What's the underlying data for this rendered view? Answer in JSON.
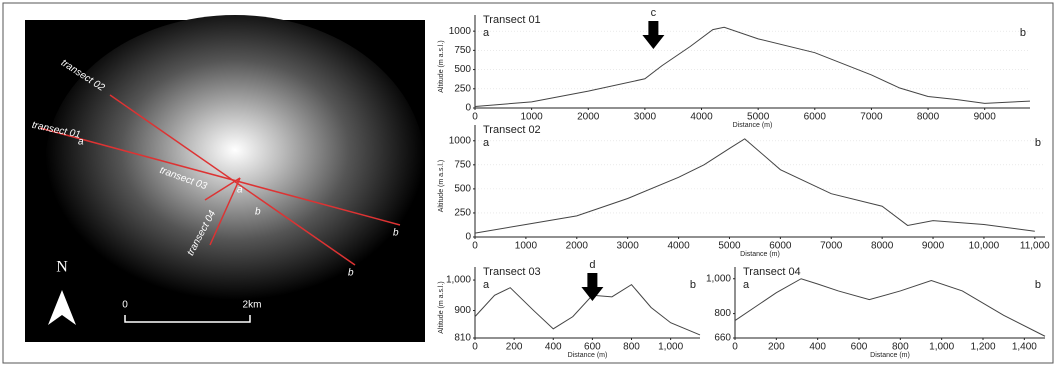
{
  "chart_data": [
    {
      "type": "line",
      "title": "Transect 01",
      "x_label": "Distance (m)",
      "y_label": "Altitude (m a.s.l.)",
      "color": "#444",
      "x": [
        0,
        1000,
        2000,
        3000,
        3300,
        3800,
        4200,
        4400,
        5000,
        6000,
        7000,
        7500,
        8000,
        8500,
        9000,
        9800
      ],
      "values": [
        20,
        80,
        220,
        380,
        550,
        800,
        1020,
        1050,
        900,
        720,
        430,
        260,
        150,
        110,
        60,
        90
      ],
      "xlim": [
        0,
        9800
      ],
      "ylim": [
        0,
        1080
      ],
      "xticks": [
        0,
        1000,
        2000,
        3000,
        4000,
        5000,
        6000,
        7000,
        8000,
        9000
      ],
      "yticks": [
        0,
        250,
        500,
        750,
        1000
      ],
      "grid": true,
      "annotations": [
        "a",
        "b"
      ],
      "marker": {
        "label": "c",
        "x": 3150
      }
    },
    {
      "type": "line",
      "title": "Transect 02",
      "x_label": "Distance (m)",
      "y_label": "Altitude (m a.s.l.)",
      "color": "#444",
      "x": [
        0,
        1000,
        2000,
        3000,
        4000,
        4500,
        5000,
        5300,
        6000,
        7000,
        8000,
        8500,
        9000,
        10000,
        11000
      ],
      "values": [
        40,
        130,
        220,
        400,
        620,
        750,
        920,
        1020,
        700,
        450,
        320,
        120,
        170,
        130,
        60
      ],
      "xlim": [
        0,
        11200
      ],
      "ylim": [
        0,
        1060
      ],
      "xticks": [
        0,
        1000,
        2000,
        3000,
        4000,
        5000,
        6000,
        7000,
        8000,
        9000,
        {
          "value": 10000,
          "label": "10,000"
        },
        {
          "value": 11000,
          "label": "11,000"
        }
      ],
      "yticks": [
        0,
        250,
        500,
        750,
        1000
      ],
      "grid": true,
      "annotations": [
        "a",
        "b"
      ]
    },
    {
      "type": "line",
      "title": "Transect 03",
      "x_label": "Distance (m)",
      "y_label": "Altitude (m a.s.l.)",
      "color": "#444",
      "x": [
        0,
        100,
        180,
        300,
        400,
        500,
        600,
        700,
        800,
        900,
        1000,
        1150
      ],
      "values": [
        880,
        950,
        975,
        900,
        840,
        880,
        950,
        945,
        985,
        910,
        860,
        820
      ],
      "xlim": [
        0,
        1150
      ],
      "ylim": [
        810,
        1010
      ],
      "xticks": [
        0,
        200,
        400,
        600,
        800,
        {
          "value": 1000,
          "label": "1,000"
        }
      ],
      "yticks": [
        810,
        900,
        {
          "value": 1000,
          "label": "1,000"
        }
      ],
      "grid": false,
      "annotations": [
        "a",
        "b"
      ],
      "marker": {
        "label": "d",
        "x": 600
      }
    },
    {
      "type": "line",
      "title": "Transect 04",
      "x_label": "Distance (m)",
      "color": "#444",
      "x": [
        0,
        100,
        200,
        320,
        400,
        500,
        650,
        800,
        950,
        1100,
        1300,
        1500
      ],
      "values": [
        760,
        840,
        920,
        1000,
        970,
        930,
        880,
        930,
        990,
        930,
        790,
        670
      ],
      "xlim": [
        0,
        1500
      ],
      "ylim": [
        660,
        1010
      ],
      "xticks": [
        0,
        200,
        400,
        600,
        800,
        {
          "value": 1000,
          "label": "1,000"
        },
        {
          "value": 1200,
          "label": "1,200"
        },
        {
          "value": 1400,
          "label": "1,400"
        }
      ],
      "yticks": [
        660,
        800,
        {
          "value": 1000,
          "label": "1,000"
        }
      ],
      "grid": false,
      "annotations": [
        "a",
        "b"
      ]
    }
  ],
  "map": {
    "transects": [
      "transect 01",
      "transect 02",
      "transect 03",
      "transect 04"
    ],
    "ends": [
      "a",
      "b"
    ],
    "north": "N",
    "scale": [
      "0",
      "2km"
    ]
  }
}
